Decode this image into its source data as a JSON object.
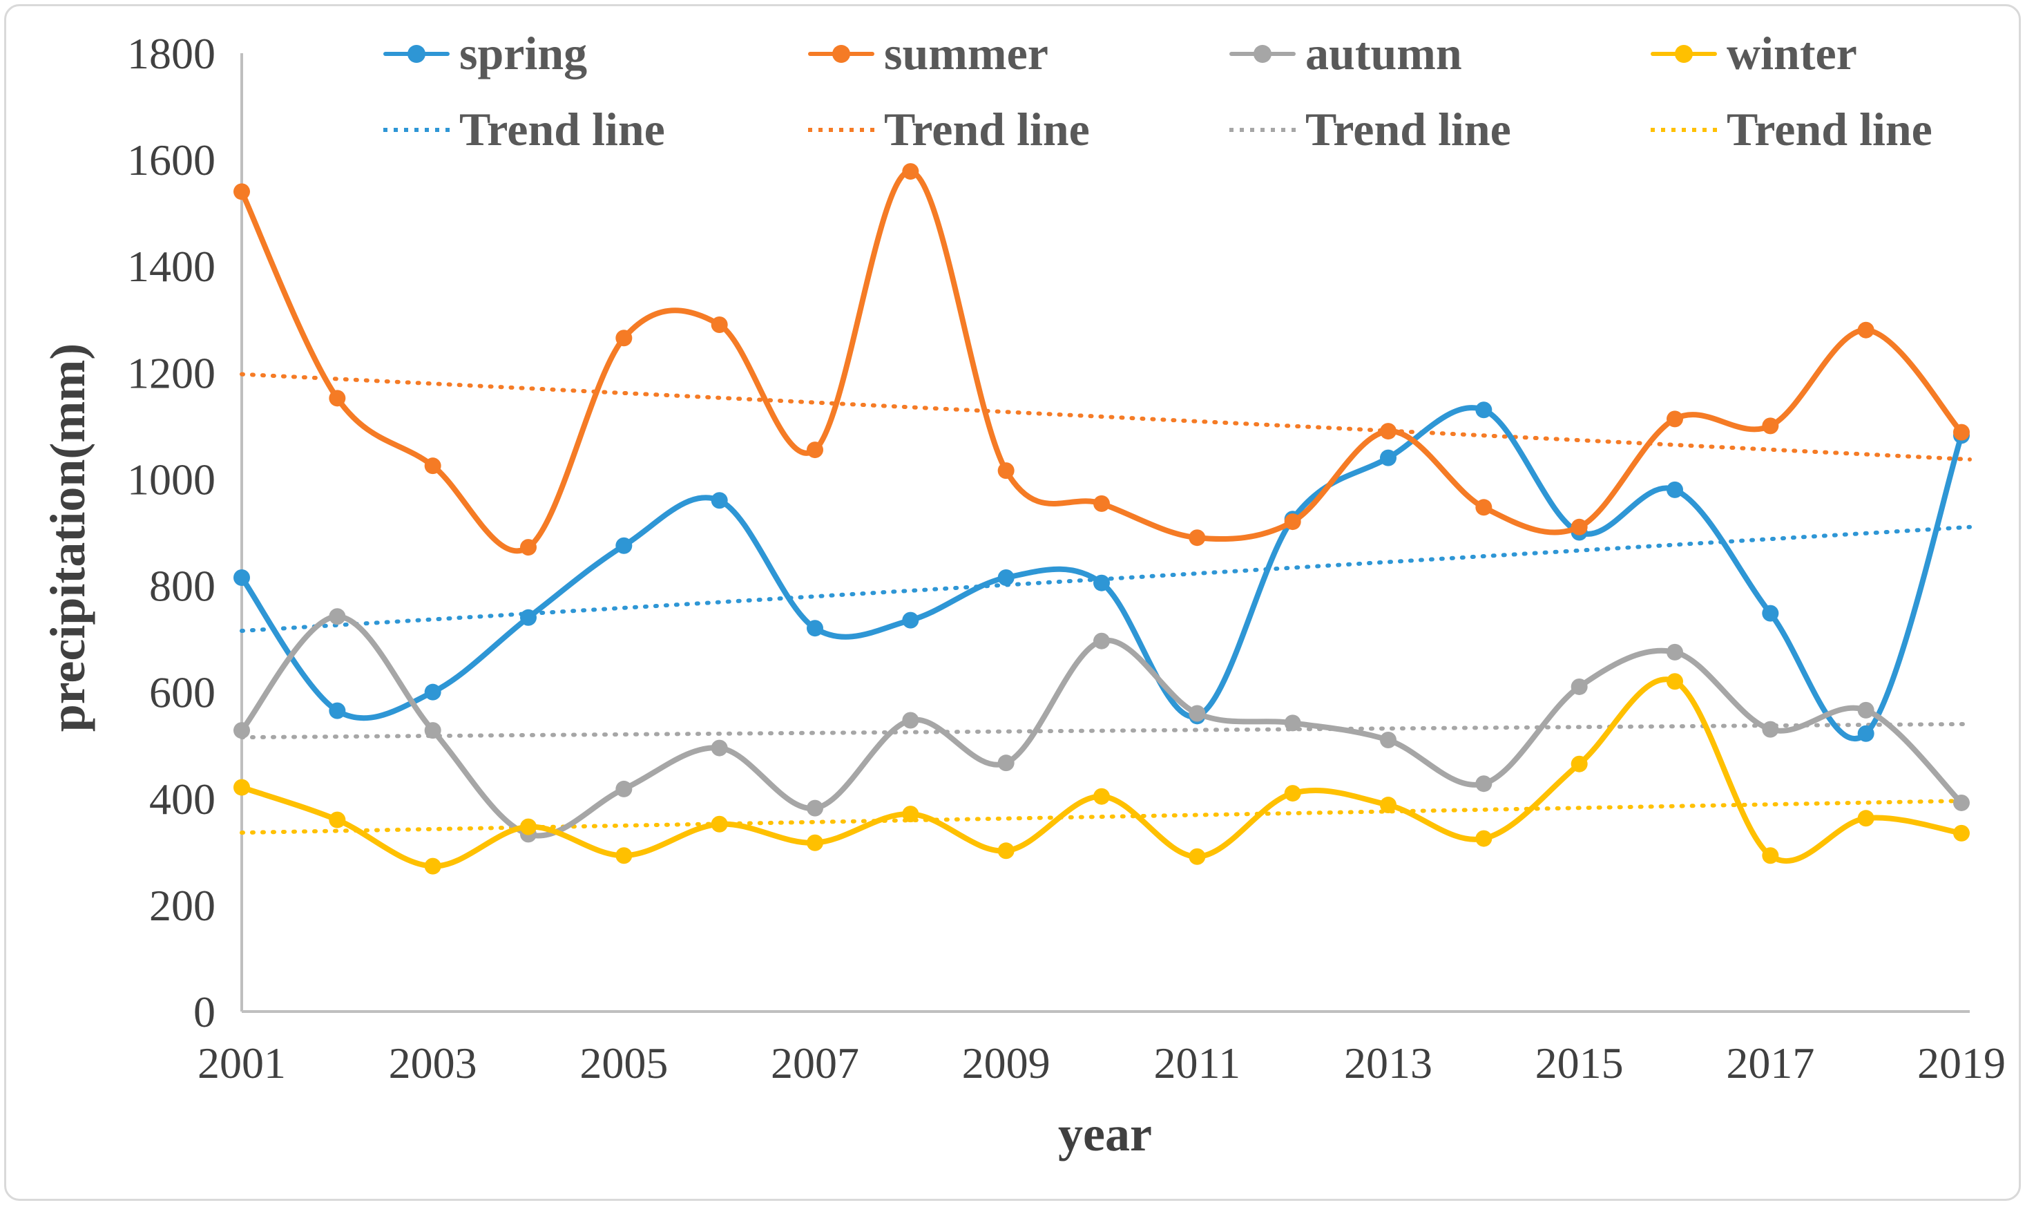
{
  "axes": {
    "y_label": "precipitation(mm)",
    "x_label": "year"
  },
  "legend": {
    "trend_label": "Trend line"
  },
  "style": {
    "background": "#ffffff",
    "frame_border_color": "#d9d9d9",
    "axis_line_color": "#bfbfbf",
    "tick_text_color": "#404040",
    "legend_text_color": "#595959",
    "spring_color": "#2e96d5",
    "summer_color": "#f57b25",
    "autumn_color": "#a6a6a6",
    "winter_color": "#ffc000"
  },
  "chart_data": {
    "type": "line",
    "title": "",
    "xlabel": "year",
    "ylabel": "precipitation(mm)",
    "ylim": [
      0,
      1800
    ],
    "y_ticks": [
      0,
      200,
      400,
      600,
      800,
      1000,
      1200,
      1400,
      1600,
      1800
    ],
    "x_ticks": [
      2001,
      2003,
      2005,
      2007,
      2009,
      2011,
      2013,
      2015,
      2017,
      2019
    ],
    "grid": false,
    "legend_position": "top",
    "smooth": true,
    "x": [
      2001,
      2002,
      2003,
      2004,
      2005,
      2006,
      2007,
      2008,
      2009,
      2010,
      2011,
      2012,
      2013,
      2014,
      2015,
      2016,
      2017,
      2018,
      2019
    ],
    "series": [
      {
        "name": "spring",
        "color": "#2e96d5",
        "values": [
          815,
          565,
          600,
          740,
          875,
          960,
          720,
          735,
          815,
          805,
          555,
          925,
          1040,
          1130,
          900,
          980,
          748,
          522,
          1082
        ]
      },
      {
        "name": "summer",
        "color": "#f57b25",
        "values": [
          1540,
          1152,
          1025,
          872,
          1265,
          1290,
          1055,
          1578,
          1016,
          954,
          890,
          920,
          1090,
          947,
          910,
          1113,
          1100,
          1280,
          1088
        ]
      },
      {
        "name": "autumn",
        "color": "#a6a6a6",
        "values": [
          528,
          742,
          528,
          333,
          418,
          495,
          382,
          547,
          467,
          696,
          560,
          542,
          510,
          428,
          610,
          675,
          530,
          566,
          392
        ]
      },
      {
        "name": "winter",
        "color": "#ffc000",
        "values": [
          421,
          360,
          273,
          347,
          293,
          352,
          317,
          371,
          302,
          404,
          291,
          410,
          388,
          325,
          465,
          620,
          293,
          363,
          335
        ]
      }
    ],
    "trend_lines": [
      {
        "series": "spring",
        "label": "Trend line",
        "color": "#2e96d5",
        "start": 715,
        "end": 910
      },
      {
        "series": "summer",
        "label": "Trend line",
        "color": "#f57b25",
        "start": 1197,
        "end": 1037
      },
      {
        "series": "autumn",
        "label": "Trend line",
        "color": "#a6a6a6",
        "start": 515,
        "end": 540
      },
      {
        "series": "winter",
        "label": "Trend line",
        "color": "#ffc000",
        "start": 336,
        "end": 396
      }
    ]
  }
}
